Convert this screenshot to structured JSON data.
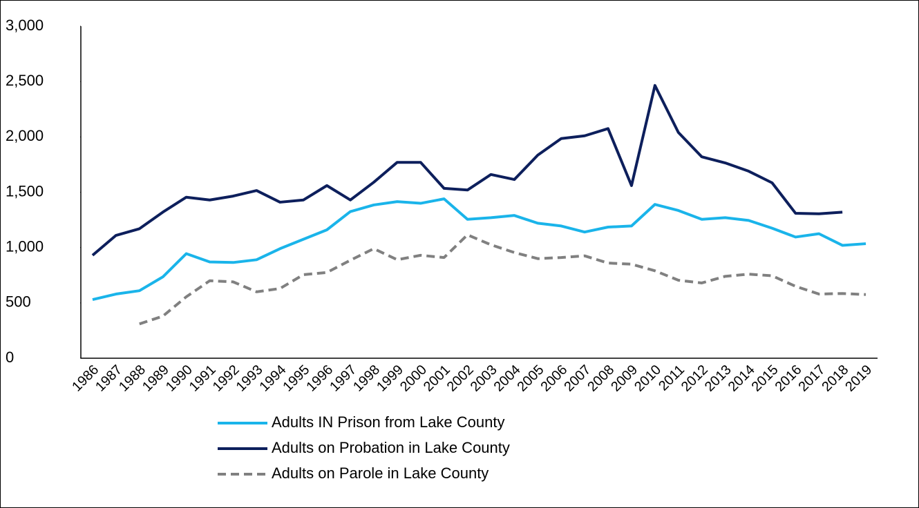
{
  "chart_data": {
    "type": "line",
    "categories": [
      "1986",
      "1987",
      "1988",
      "1989",
      "1990",
      "1991",
      "1992",
      "1993",
      "1994",
      "1995",
      "1996",
      "1997",
      "1998",
      "1999",
      "2000",
      "2001",
      "2002",
      "2003",
      "2004",
      "2005",
      "2006",
      "2007",
      "2008",
      "2009",
      "2010",
      "2011",
      "2012",
      "2013",
      "2014",
      "2015",
      "2016",
      "2017",
      "2018",
      "2019"
    ],
    "series": [
      {
        "name": "Adults IN Prison from Lake County",
        "color": "#1ab4ea",
        "style": "solid",
        "values": [
          530,
          580,
          610,
          735,
          945,
          870,
          865,
          890,
          990,
          1075,
          1160,
          1325,
          1385,
          1415,
          1400,
          1440,
          1255,
          1270,
          1290,
          1220,
          1195,
          1140,
          1185,
          1195,
          1390,
          1335,
          1255,
          1270,
          1245,
          1175,
          1095,
          1125,
          1020,
          1035
        ]
      },
      {
        "name": "Adults on Probation in Lake County",
        "color": "#0d1f5c",
        "style": "solid",
        "values": [
          930,
          1110,
          1170,
          1320,
          1455,
          1430,
          1465,
          1515,
          1410,
          1430,
          1560,
          1430,
          1590,
          1770,
          1770,
          1535,
          1520,
          1660,
          1615,
          1835,
          1985,
          2010,
          2075,
          1560,
          2465,
          2040,
          1820,
          1765,
          1690,
          1585,
          1310,
          1305,
          1320,
          null
        ]
      },
      {
        "name": "Adults on Parole in Lake County",
        "color": "#808080",
        "style": "dashed",
        "values": [
          null,
          null,
          310,
          380,
          555,
          700,
          690,
          600,
          630,
          755,
          775,
          885,
          990,
          890,
          930,
          910,
          1115,
          1025,
          955,
          900,
          910,
          925,
          860,
          850,
          790,
          705,
          680,
          740,
          760,
          745,
          650,
          580,
          585,
          575
        ]
      }
    ],
    "ylim": [
      0,
      3000
    ],
    "yticks": [
      0,
      500,
      {
        "value": 1000,
        "label": "1,000"
      },
      {
        "value": 1500,
        "label": "1,500"
      },
      {
        "value": 2000,
        "label": "2,000"
      },
      {
        "value": 2500,
        "label": "2,500"
      },
      {
        "value": 3000,
        "label": "3,000"
      }
    ],
    "grid": false
  }
}
